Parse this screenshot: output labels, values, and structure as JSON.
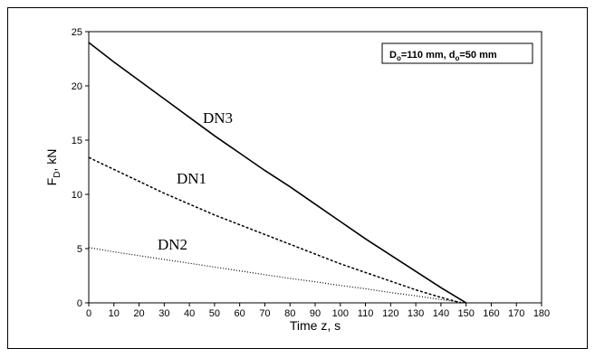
{
  "chart_data": {
    "type": "line",
    "title": "",
    "xlabel": "Time z, s",
    "ylabel": "F_D, kN",
    "ylabel_main": "F",
    "ylabel_sub": "D",
    "ylabel_rest": ", kN",
    "xlim": [
      0,
      180
    ],
    "ylim": [
      0,
      25
    ],
    "x_ticks": [
      0,
      10,
      20,
      30,
      40,
      50,
      60,
      70,
      80,
      90,
      100,
      110,
      120,
      130,
      140,
      150,
      160,
      170,
      180
    ],
    "y_ticks": [
      0,
      5,
      10,
      15,
      20,
      25
    ],
    "grid": false,
    "legend": "none",
    "annotation": {
      "part1_main": "D",
      "part1_sub": "o",
      "part1_rest": "=110 mm, d",
      "part2_sub": "o",
      "part2_rest": "=50 mm"
    },
    "series": [
      {
        "name": "DN3",
        "style": "solid",
        "x": [
          0,
          10,
          20,
          30,
          40,
          50,
          60,
          70,
          80,
          90,
          100,
          110,
          120,
          130,
          140,
          150
        ],
        "values": [
          24.0,
          22.2,
          20.5,
          18.8,
          17.1,
          15.4,
          13.8,
          12.2,
          10.7,
          9.1,
          7.5,
          5.9,
          4.4,
          2.9,
          1.4,
          0.0
        ]
      },
      {
        "name": "DN1",
        "style": "dashed",
        "x": [
          0,
          10,
          20,
          30,
          40,
          50,
          60,
          70,
          80,
          90,
          100,
          110,
          120,
          130,
          140,
          148
        ],
        "values": [
          13.4,
          12.3,
          11.2,
          10.1,
          9.1,
          8.1,
          7.2,
          6.3,
          5.4,
          4.5,
          3.6,
          2.8,
          2.0,
          1.2,
          0.5,
          0.0
        ]
      },
      {
        "name": "DN2",
        "style": "dotted",
        "x": [
          0,
          10,
          20,
          30,
          40,
          50,
          60,
          70,
          80,
          90,
          100,
          110,
          120,
          130,
          140,
          150
        ],
        "values": [
          5.1,
          4.7,
          4.35,
          4.0,
          3.65,
          3.3,
          2.95,
          2.6,
          2.25,
          1.95,
          1.6,
          1.3,
          0.95,
          0.65,
          0.3,
          0.0
        ]
      }
    ]
  }
}
